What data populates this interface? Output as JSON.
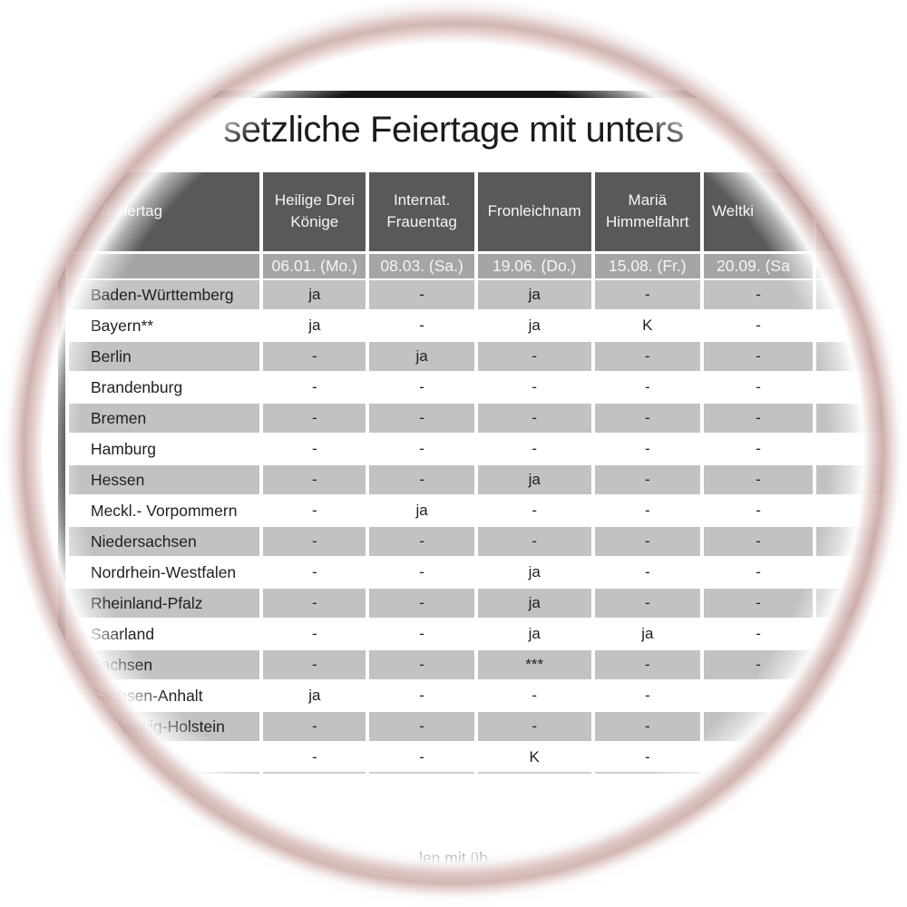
{
  "document": {
    "title_fragment": "setzliche Feiertage mit unters",
    "footer_fragment": "len mit üb"
  },
  "table": {
    "corner_header_fragment": "/Feiertag",
    "columns": [
      {
        "label": "Heilige Drei Könige",
        "date": "06.01. (Mo.)"
      },
      {
        "label": "Internat. Frauentag",
        "date": "08.03. (Sa.)"
      },
      {
        "label": "Fronleichnam",
        "date": "19.06. (Do.)"
      },
      {
        "label": "Mariä Himmelfahrt",
        "date": "15.08. (Fr.)"
      },
      {
        "label": "Weltki",
        "date": "20.09. (Sa"
      },
      {
        "label": "",
        "date": ""
      }
    ],
    "rows": [
      {
        "state": "Baden-Württemberg",
        "values": [
          "ja",
          "-",
          "ja",
          "-",
          "-",
          ""
        ]
      },
      {
        "state": "Bayern**",
        "values": [
          "ja",
          "-",
          "ja",
          "K",
          "-",
          ""
        ]
      },
      {
        "state": "Berlin",
        "values": [
          "-",
          "ja",
          "-",
          "-",
          "-",
          ""
        ]
      },
      {
        "state": "Brandenburg",
        "values": [
          "-",
          "-",
          "-",
          "-",
          "-",
          ""
        ]
      },
      {
        "state": "Bremen",
        "values": [
          "-",
          "-",
          "-",
          "-",
          "-",
          ""
        ]
      },
      {
        "state": "Hamburg",
        "values": [
          "-",
          "-",
          "-",
          "-",
          "-",
          ""
        ]
      },
      {
        "state": "Hessen",
        "values": [
          "-",
          "-",
          "ja",
          "-",
          "-",
          ""
        ]
      },
      {
        "state": "Meckl.- Vorpommern",
        "values": [
          "-",
          "ja",
          "-",
          "-",
          "-",
          ""
        ]
      },
      {
        "state": "Niedersachsen",
        "values": [
          "-",
          "-",
          "-",
          "-",
          "-",
          ""
        ]
      },
      {
        "state": "Nordrhein-Westfalen",
        "values": [
          "-",
          "-",
          "ja",
          "-",
          "-",
          ""
        ]
      },
      {
        "state": "Rheinland-Pfalz",
        "values": [
          "-",
          "-",
          "ja",
          "-",
          "-",
          ""
        ]
      },
      {
        "state": "Saarland",
        "values": [
          "-",
          "-",
          "ja",
          "ja",
          "-",
          ""
        ]
      },
      {
        "state": "Sachsen",
        "values": [
          "-",
          "-",
          "***",
          "-",
          "-",
          ""
        ]
      },
      {
        "state": "Sachsen-Anhalt",
        "values": [
          "ja",
          "-",
          "-",
          "-",
          "",
          ""
        ]
      },
      {
        "state": "Schleswig-Holstein",
        "values": [
          "-",
          "-",
          "-",
          "-",
          "",
          ""
        ]
      },
      {
        "state": "",
        "values": [
          "-",
          "-",
          "K",
          "-",
          "",
          ""
        ]
      }
    ]
  },
  "colors": {
    "header_bg": "#595959",
    "date_row_bg": "#a5a5a5",
    "row_alt_bg": "#c2c2c2",
    "row_bg": "#ffffff",
    "header_text": "#f5f5f5",
    "body_text": "#1f1f1f",
    "border_black": "#161616",
    "rim": "#d5b7b4"
  }
}
